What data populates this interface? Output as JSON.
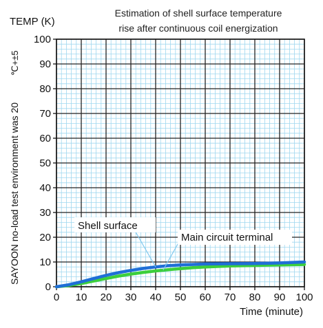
{
  "chart_data": {
    "type": "line",
    "title_line1": "Estimation of shell surface temperature",
    "title_line2": "rise after continuous coil energization",
    "ylabel": "TEMP (K)",
    "xlabel": "Time (minute)",
    "side_note_main": "SAYOON no-load test environment was 20",
    "side_note_tolerance": "℃+±5",
    "xlim": [
      0,
      100
    ],
    "ylim": [
      0,
      100
    ],
    "x_ticks": [
      0,
      10,
      20,
      30,
      40,
      50,
      60,
      70,
      80,
      90,
      100
    ],
    "y_ticks": [
      0,
      10,
      20,
      30,
      40,
      50,
      60,
      70,
      80,
      90,
      100
    ],
    "grid": true,
    "series": [
      {
        "name": "Shell surface",
        "color": "#1f6fd6",
        "x": [
          0,
          5,
          10,
          15,
          20,
          25,
          30,
          35,
          40,
          45,
          50,
          55,
          60,
          70,
          80,
          90,
          100
        ],
        "y": [
          0,
          0.8,
          2.0,
          3.3,
          4.6,
          5.7,
          6.6,
          7.4,
          8.0,
          8.5,
          8.8,
          9.0,
          9.2,
          9.3,
          9.4,
          9.6,
          10.0
        ]
      },
      {
        "name": "Main circuit terminal",
        "color": "#3ccf3c",
        "x": [
          0,
          5,
          10,
          15,
          20,
          25,
          30,
          35,
          40,
          45,
          50,
          55,
          60,
          70,
          80,
          90,
          100
        ],
        "y": [
          0,
          0.5,
          1.3,
          2.3,
          3.3,
          4.3,
          5.1,
          5.8,
          6.4,
          6.9,
          7.3,
          7.7,
          8.0,
          8.4,
          8.6,
          8.8,
          9.0
        ]
      }
    ],
    "annotations": [
      {
        "text": "Shell surface",
        "points_to_series": 0
      },
      {
        "text": "Main circuit terminal",
        "points_to_series": 1
      }
    ]
  }
}
